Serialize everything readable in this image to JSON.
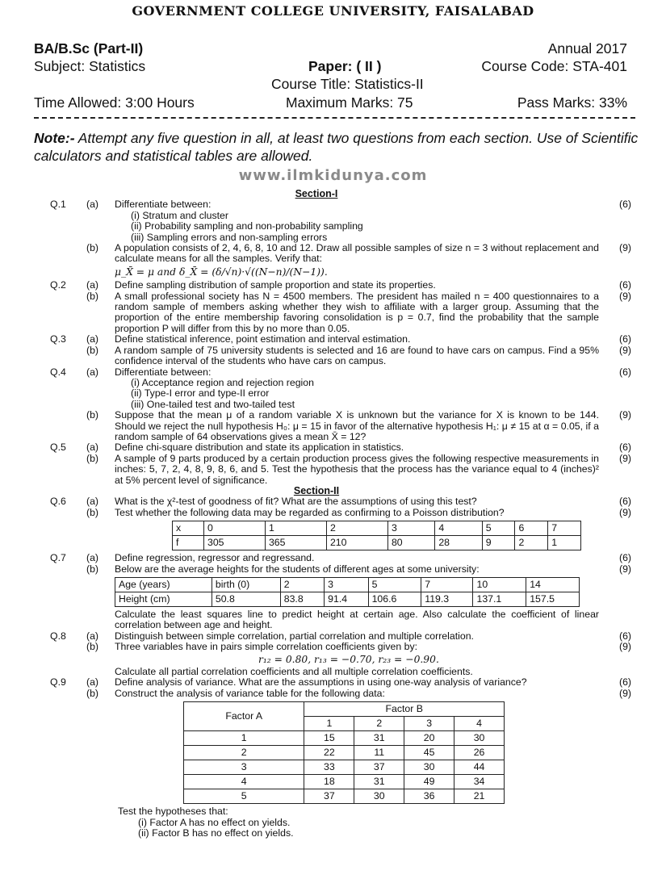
{
  "header": {
    "university": "GOVERNMENT COLLEGE UNIVERSITY, FAISALABAD",
    "program": "BA/B.Sc (Part-II)",
    "session": "Annual 2017",
    "subject": "Subject: Statistics",
    "paper": "Paper: ( II )",
    "course_code": "Course Code: STA-401",
    "course_title": "Course Title: Statistics-II",
    "time": "Time Allowed: 3:00 Hours",
    "max_marks": "Maximum Marks: 75",
    "pass_marks": "Pass Marks: 33%"
  },
  "note": {
    "label": "Note:-",
    "text": " Attempt any five question in all, at least two questions from each section. Use of Scientific calculators and statistical tables are allowed."
  },
  "watermark": "www.ilmkidunya.com",
  "sections": [
    "Section-I",
    "Section-II"
  ],
  "q1": {
    "num": "Q.1",
    "a": "(a)",
    "a_text": "Differentiate between:",
    "a_items": [
      "(i)  Stratum and cluster",
      "(ii)  Probability sampling and non-probability sampling",
      "(iii)  Sampling errors and non-sampling errors"
    ],
    "a_marks": "(6)",
    "b": "(b)",
    "b_text": "A population consists of 2, 4, 6, 8, 10 and 12. Draw all possible samples of size n = 3 without replacement and calculate means for all the samples. Verify that:",
    "b_formula": "μ_X̄ = μ and δ_X̄ = (δ/√n)·√((N−n)/(N−1)).",
    "b_marks": "(9)"
  },
  "q2": {
    "num": "Q.2",
    "a": "(a)",
    "a_text": "Define sampling distribution of sample proportion and state its properties.",
    "a_marks": "(6)",
    "b": "(b)",
    "b_text": "A small professional society has N = 4500 members. The president has mailed n = 400 questionnaires to a random sample of members asking whether they wish to affiliate with a larger group. Assuming that the proportion of the entire membership favoring consolidation is p = 0.7, find the probability that the sample proportion P will differ from this by no more than 0.05.",
    "b_marks": "(9)"
  },
  "q3": {
    "num": "Q.3",
    "a": "(a)",
    "a_text": "Define statistical inference, point estimation and interval estimation.",
    "a_marks": "(6)",
    "b": "(b)",
    "b_text": "A random sample of 75 university students is selected and 16 are found to have cars on campus. Find a 95% confidence interval of the students who have cars on campus.",
    "b_marks": "(9)"
  },
  "q4": {
    "num": "Q.4",
    "a": "(a)",
    "a_text": "Differentiate between:",
    "a_items": [
      "(i)  Acceptance region and rejection region",
      "(ii)  Type-I error and type-II error",
      "(iii)  One-tailed test and two-tailed test"
    ],
    "a_marks": "(6)",
    "b": "(b)",
    "b_text": "Suppose that the mean μ of a random variable X is unknown but the variance for X is known to be 144. Should we reject the null hypothesis H₀: μ = 15 in favor of the alternative hypothesis H₁: μ ≠ 15 at α = 0.05, if a random sample of 64 observations gives a mean X̄ = 12?",
    "b_marks": "(9)"
  },
  "q5": {
    "num": "Q.5",
    "a": "(a)",
    "a_text": "Define chi-square distribution and state its application in statistics.",
    "a_marks": "(6)",
    "b": "(b)",
    "b_text": "A sample of 9 parts produced by a certain production process gives the following respective measurements in inches: 5, 7, 2, 4, 8, 9, 8, 6, and 5. Test the hypothesis that the process has the variance equal to 4 (inches)² at 5% percent level of significance.",
    "b_marks": "(9)"
  },
  "q6": {
    "num": "Q.6",
    "a": "(a)",
    "a_text": "What is the χ²-test of goodness of fit? What are the assumptions of using this test?",
    "a_marks": "(6)",
    "b": "(b)",
    "b_text": "Test whether the following data may be regarded as confirming to a Poisson distribution?",
    "b_marks": "(9)",
    "table": [
      [
        "x",
        "0",
        "1",
        "2",
        "3",
        "4",
        "5",
        "6",
        "7"
      ],
      [
        "f",
        "305",
        "365",
        "210",
        "80",
        "28",
        "9",
        "2",
        "1"
      ]
    ]
  },
  "q7": {
    "num": "Q.7",
    "a": "(a)",
    "a_text": "Define regression, regressor and regressand.",
    "a_marks": "(6)",
    "b": "(b)",
    "b_text": "Below are the average heights for the students of different ages at some university:",
    "b_marks": "(9)",
    "table": [
      [
        "Age (years)",
        "birth (0)",
        "2",
        "3",
        "5",
        "7",
        "10",
        "14"
      ],
      [
        "Height (cm)",
        "50.8",
        "83.8",
        "91.4",
        "106.6",
        "119.3",
        "137.1",
        "157.5"
      ]
    ],
    "b_after": "Calculate the least squares line to predict height at certain age. Also calculate the coefficient of linear correlation between age and height."
  },
  "q8": {
    "num": "Q.8",
    "a": "(a)",
    "a_text": "Distinguish between simple correlation, partial correlation and multiple correlation.",
    "a_marks": "(6)",
    "b": "(b)",
    "b_text": "Three variables have in pairs simple correlation coefficients given by:",
    "b_formula": "r₁₂ = 0.80,  r₁₃ = −0.70,  r₂₃ = −0.90.",
    "b_after": "Calculate all partial correlation coefficients and all multiple correlation coefficients.",
    "b_marks": "(9)"
  },
  "q9": {
    "num": "Q.9",
    "a": "(a)",
    "a_text": "Define analysis of variance. What are the assumptions in using one-way analysis of variance?",
    "a_marks": "(6)",
    "b": "(b)",
    "b_text": "Construct the analysis of variance table for the following data:",
    "b_marks": "(9)",
    "table": {
      "row_header": "Factor A",
      "col_header": "Factor B",
      "cols": [
        "1",
        "2",
        "3",
        "4"
      ],
      "rows": [
        [
          "1",
          "15",
          "31",
          "20",
          "30"
        ],
        [
          "2",
          "22",
          "11",
          "45",
          "26"
        ],
        [
          "3",
          "33",
          "37",
          "30",
          "44"
        ],
        [
          "4",
          "18",
          "31",
          "49",
          "34"
        ],
        [
          "5",
          "37",
          "30",
          "36",
          "21"
        ]
      ]
    },
    "b_after": "Test the hypotheses that:",
    "hyp": [
      "(i)  Factor A has no effect on yields.",
      "(ii)  Factor B has no effect on yields."
    ]
  }
}
